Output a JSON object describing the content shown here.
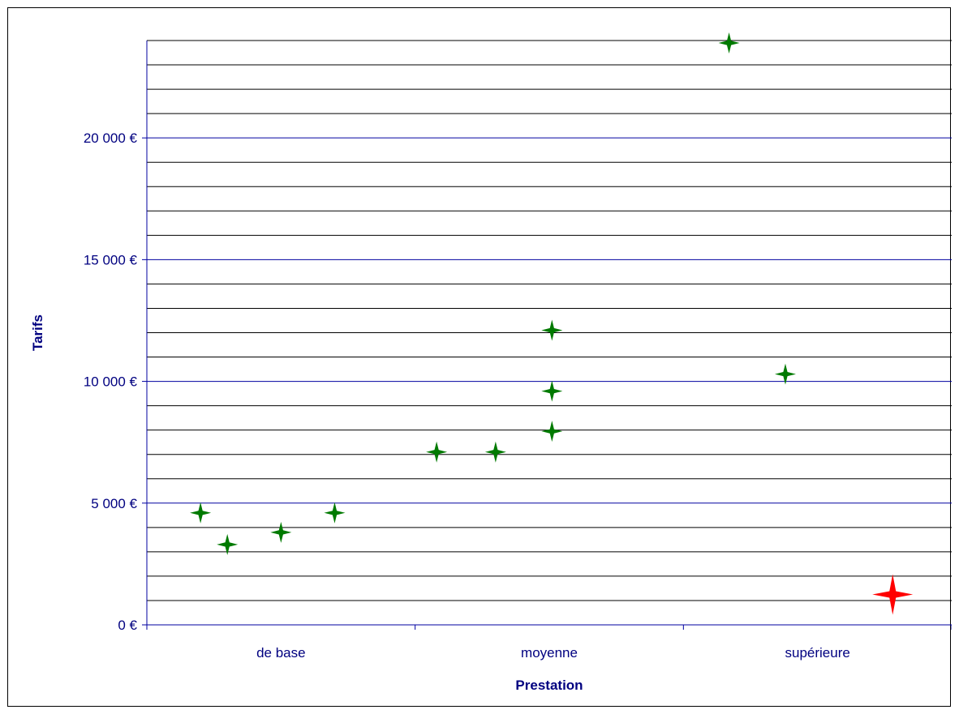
{
  "chart_data": {
    "type": "scatter",
    "title": "",
    "xlabel": "Prestation",
    "ylabel": "Tarifs",
    "categories": [
      "de base",
      "moyenne",
      "supérieure"
    ],
    "y_ticks": [
      {
        "value": 0,
        "label": "0 €"
      },
      {
        "value": 5000,
        "label": "5 000 €"
      },
      {
        "value": 10000,
        "label": "10 000 €"
      },
      {
        "value": 15000,
        "label": "15 000 €"
      },
      {
        "value": 20000,
        "label": "20 000 €"
      }
    ],
    "ylim": [
      0,
      24000
    ],
    "xlim": [
      0,
      3
    ],
    "minor_gridline_step": 1000,
    "grid": true,
    "series": [
      {
        "color": "#007a00",
        "marker": "four-point-star",
        "points": [
          {
            "x": 0.2,
            "y": 4600
          },
          {
            "x": 0.3,
            "y": 3300
          },
          {
            "x": 0.5,
            "y": 3800
          },
          {
            "x": 0.7,
            "y": 4600
          },
          {
            "x": 1.08,
            "y": 7100
          },
          {
            "x": 1.3,
            "y": 7100
          },
          {
            "x": 1.51,
            "y": 7950
          },
          {
            "x": 1.51,
            "y": 9600
          },
          {
            "x": 1.51,
            "y": 12100
          },
          {
            "x": 2.17,
            "y": 23900
          },
          {
            "x": 2.38,
            "y": 10300
          }
        ]
      },
      {
        "color": "#ff0000",
        "marker": "four-point-star-large",
        "points": [
          {
            "x": 2.78,
            "y": 1250
          }
        ]
      }
    ]
  }
}
